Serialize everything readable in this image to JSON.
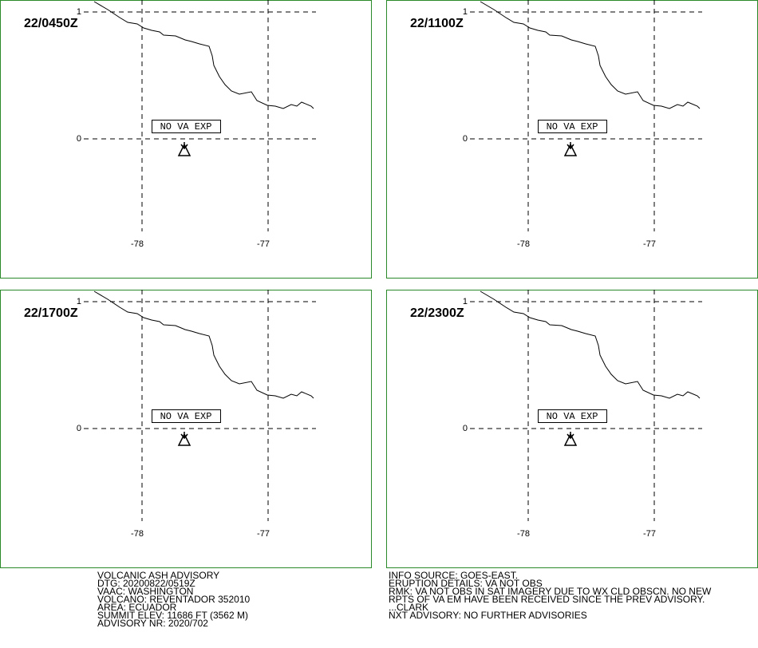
{
  "panels": [
    {
      "time": "22/0450Z",
      "status": "NO VA EXP"
    },
    {
      "time": "22/1100Z",
      "status": "NO VA EXP"
    },
    {
      "time": "22/1700Z",
      "status": "NO VA EXP"
    },
    {
      "time": "22/2300Z",
      "status": "NO VA EXP"
    }
  ],
  "grid": {
    "lat_labels": [
      "1",
      "0"
    ],
    "lon_labels": [
      "-78",
      "-77"
    ]
  },
  "advisory": {
    "left": [
      "VOLCANIC ASH ADVISORY",
      "DTG: 20200822/0519Z",
      "VAAC: WASHINGTON",
      "VOLCANO: REVENTADOR 352010",
      "AREA: ECUADOR",
      "SUMMIT ELEV: 11686 FT (3562 M)",
      "ADVISORY NR: 2020/702"
    ],
    "right": [
      "INFO SOURCE: GOES-EAST.",
      "ERUPTION DETAILS: VA NOT OBS",
      "RMK: VA NOT OBS IN SAT IMAGERY DUE TO WX CLD OBSCN. NO NEW",
      "RPTS OF VA EM HAVE BEEN RECEIVED SINCE THE PREV ADVISORY.",
      "...CLARK",
      "NXT ADVISORY: NO FURTHER ADVISORIES"
    ]
  }
}
